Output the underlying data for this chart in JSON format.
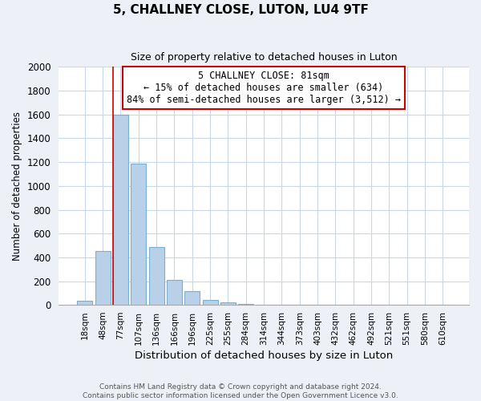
{
  "title": "5, CHALLNEY CLOSE, LUTON, LU4 9TF",
  "subtitle": "Size of property relative to detached houses in Luton",
  "xlabel": "Distribution of detached houses by size in Luton",
  "ylabel": "Number of detached properties",
  "bar_labels": [
    "18sqm",
    "48sqm",
    "77sqm",
    "107sqm",
    "136sqm",
    "166sqm",
    "196sqm",
    "225sqm",
    "255sqm",
    "284sqm",
    "314sqm",
    "344sqm",
    "373sqm",
    "403sqm",
    "432sqm",
    "462sqm",
    "492sqm",
    "521sqm",
    "551sqm",
    "580sqm",
    "610sqm"
  ],
  "bar_values": [
    35,
    455,
    1600,
    1190,
    490,
    210,
    115,
    45,
    20,
    10,
    0,
    0,
    0,
    0,
    0,
    0,
    0,
    0,
    0,
    0,
    0
  ],
  "bar_color": "#b8d0e8",
  "bar_edge_color": "#7aafd4",
  "annotation_title": "5 CHALLNEY CLOSE: 81sqm",
  "annotation_line1": "← 15% of detached houses are smaller (634)",
  "annotation_line2": "84% of semi-detached houses are larger (3,512) →",
  "marker_line_color": "#cc0000",
  "ylim": [
    0,
    2000
  ],
  "yticks": [
    0,
    200,
    400,
    600,
    800,
    1000,
    1200,
    1400,
    1600,
    1800,
    2000
  ],
  "footer_line1": "Contains HM Land Registry data © Crown copyright and database right 2024.",
  "footer_line2": "Contains public sector information licensed under the Open Government Licence v3.0.",
  "background_color": "#edf1f7",
  "plot_bg_color": "#ffffff",
  "grid_color": "#c8d8e8"
}
